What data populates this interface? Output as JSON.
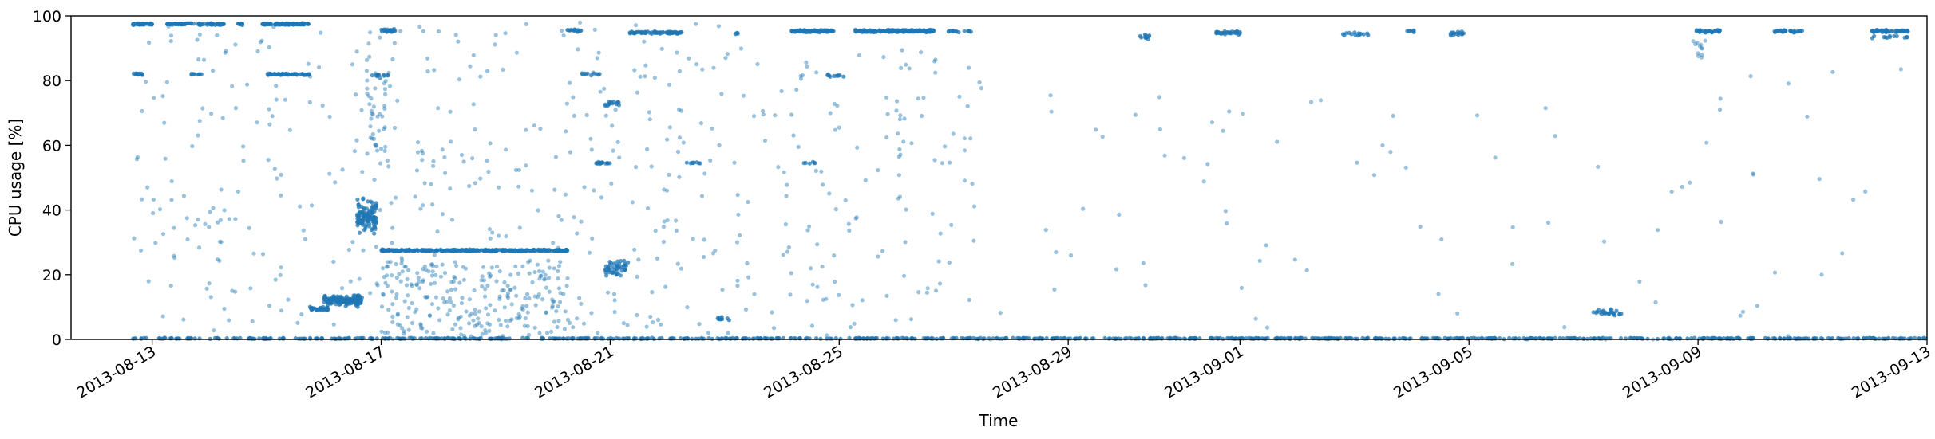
{
  "chart_data": {
    "type": "scatter",
    "title": "",
    "xlabel": "Time",
    "ylabel": "CPU usage [%]",
    "xlim": [
      "2013-08-11T14:00",
      "2013-09-13T00:00"
    ],
    "ylim": [
      0,
      100
    ],
    "yticks": [
      0,
      20,
      40,
      60,
      80,
      100
    ],
    "xticks": [
      "2013-08-13",
      "2013-08-17",
      "2013-08-21",
      "2013-08-25",
      "2013-08-29",
      "2013-09-01",
      "2013-09-05",
      "2013-09-09",
      "2013-09-13"
    ],
    "grid": false,
    "legend": "none",
    "marker_color": "#1f77b4",
    "clusters": [
      {
        "x_start": "2013-08-12T16:00",
        "x_end": "2013-08-13T00:00",
        "y": 97.5,
        "spread": 0.4,
        "n": 45,
        "density": "dense"
      },
      {
        "x_start": "2013-08-13T06:00",
        "x_end": "2013-08-14T06:00",
        "y": 97.5,
        "spread": 0.4,
        "n": 80,
        "density": "dense"
      },
      {
        "x_start": "2013-08-14T12:00",
        "x_end": "2013-08-14T14:00",
        "y": 97.5,
        "spread": 0.4,
        "n": 12,
        "density": "dense"
      },
      {
        "x_start": "2013-08-14T22:00",
        "x_end": "2013-08-15T18:00",
        "y": 97.5,
        "spread": 0.4,
        "n": 110,
        "density": "dense"
      },
      {
        "x_start": "2013-08-15T00:00",
        "x_end": "2013-08-15T18:00",
        "y": 82,
        "spread": 0.4,
        "n": 60,
        "density": "dense"
      },
      {
        "x_start": "2013-08-12T16:00",
        "x_end": "2013-08-12T20:00",
        "y": 82,
        "spread": 0.4,
        "n": 15,
        "density": "dense"
      },
      {
        "x_start": "2013-08-13T16:00",
        "x_end": "2013-08-13T22:00",
        "y": 82,
        "spread": 0.4,
        "n": 8,
        "density": "dense"
      },
      {
        "x_start": "2013-08-15T18:00",
        "x_end": "2013-08-16T02:00",
        "y": 9.5,
        "spread": 0.8,
        "n": 30,
        "density": "dense"
      },
      {
        "x_start": "2013-08-16T00:00",
        "x_end": "2013-08-16T16:00",
        "y": 12,
        "spread": 2.2,
        "n": 150,
        "density": "dense"
      },
      {
        "x_start": "2013-08-16T14:00",
        "x_end": "2013-08-16T22:00",
        "y": 38,
        "spread": 7,
        "n": 110,
        "density": "dense"
      },
      {
        "x_start": "2013-08-16T18:00",
        "x_end": "2013-08-17T02:00",
        "y": 70,
        "spread": 14,
        "n": 35,
        "density": "sparse"
      },
      {
        "x_start": "2013-08-17T00:00",
        "x_end": "2013-08-20T06:00",
        "y": 27.5,
        "spread": 0.4,
        "n": 330,
        "density": "dense"
      },
      {
        "x_start": "2013-08-17T00:00",
        "x_end": "2013-08-17T06:00",
        "y": 95.5,
        "spread": 0.6,
        "n": 20,
        "density": "dense"
      },
      {
        "x_start": "2013-08-16T20:00",
        "x_end": "2013-08-17T04:00",
        "y": 81.5,
        "spread": 0.6,
        "n": 10,
        "density": "dense"
      },
      {
        "x_start": "2013-08-20T06:00",
        "x_end": "2013-08-20T12:00",
        "y": 95.5,
        "spread": 0.6,
        "n": 14,
        "density": "dense"
      },
      {
        "x_start": "2013-08-20T12:00",
        "x_end": "2013-08-20T20:00",
        "y": 82,
        "spread": 0.5,
        "n": 10,
        "density": "dense"
      },
      {
        "x_start": "2013-08-20T18:00",
        "x_end": "2013-08-21T00:00",
        "y": 54.5,
        "spread": 0.5,
        "n": 14,
        "density": "dense"
      },
      {
        "x_start": "2013-08-20T20:00",
        "x_end": "2013-08-21T04:00",
        "y": 73,
        "spread": 1.5,
        "n": 15,
        "density": "dense"
      },
      {
        "x_start": "2013-08-20T22:00",
        "x_end": "2013-08-21T08:00",
        "y": 22,
        "spread": 3,
        "n": 45,
        "density": "dense"
      },
      {
        "x_start": "2013-08-21T08:00",
        "x_end": "2013-08-22T06:00",
        "y": 94.8,
        "spread": 0.5,
        "n": 70,
        "density": "dense"
      },
      {
        "x_start": "2013-08-22T08:00",
        "x_end": "2013-08-22T14:00",
        "y": 54.5,
        "spread": 0.4,
        "n": 8,
        "density": "dense"
      },
      {
        "x_start": "2013-08-22T20:00",
        "x_end": "2013-08-23T02:00",
        "y": 6.5,
        "spread": 1.2,
        "n": 10,
        "density": "dense"
      },
      {
        "x_start": "2013-08-23T04:00",
        "x_end": "2013-08-23T06:00",
        "y": 94.5,
        "spread": 0.5,
        "n": 4,
        "density": "dense"
      },
      {
        "x_start": "2013-08-24T04:00",
        "x_end": "2013-08-24T22:00",
        "y": 95.3,
        "spread": 0.5,
        "n": 90,
        "density": "dense"
      },
      {
        "x_start": "2013-08-25T06:00",
        "x_end": "2013-08-26T16:00",
        "y": 95.3,
        "spread": 0.5,
        "n": 190,
        "density": "dense"
      },
      {
        "x_start": "2013-08-24T18:00",
        "x_end": "2013-08-25T02:00",
        "y": 81.5,
        "spread": 0.5,
        "n": 10,
        "density": "dense"
      },
      {
        "x_start": "2013-08-24T08:00",
        "x_end": "2013-08-24T14:00",
        "y": 54.5,
        "spread": 0.5,
        "n": 6,
        "density": "dense"
      },
      {
        "x_start": "2013-08-26T20:00",
        "x_end": "2013-08-27T08:00",
        "y": 95.3,
        "spread": 0.5,
        "n": 14,
        "density": "dense"
      },
      {
        "x_start": "2013-08-30T06:00",
        "x_end": "2013-08-30T10:00",
        "y": 93.5,
        "spread": 1.5,
        "n": 10,
        "density": "dense"
      },
      {
        "x_start": "2013-08-31T14:00",
        "x_end": "2013-09-01T00:00",
        "y": 94.8,
        "spread": 0.8,
        "n": 30,
        "density": "dense"
      },
      {
        "x_start": "2013-09-02T18:00",
        "x_end": "2013-09-03T06:00",
        "y": 94.5,
        "spread": 1,
        "n": 14,
        "density": "dense"
      },
      {
        "x_start": "2013-09-03T22:00",
        "x_end": "2013-09-04T02:00",
        "y": 95.3,
        "spread": 0.6,
        "n": 6,
        "density": "dense"
      },
      {
        "x_start": "2013-09-04T16:00",
        "x_end": "2013-09-04T22:00",
        "y": 94.5,
        "spread": 1.2,
        "n": 14,
        "density": "dense"
      },
      {
        "x_start": "2013-09-07T04:00",
        "x_end": "2013-09-07T16:00",
        "y": 8.5,
        "spread": 1.5,
        "n": 25,
        "density": "dense"
      },
      {
        "x_start": "2013-09-08T22:00",
        "x_end": "2013-09-09T10:00",
        "y": 95.3,
        "spread": 0.6,
        "n": 30,
        "density": "dense"
      },
      {
        "x_start": "2013-09-08T22:00",
        "x_end": "2013-09-09T04:00",
        "y": 90,
        "spread": 3,
        "n": 12,
        "density": "sparse"
      },
      {
        "x_start": "2013-09-10T08:00",
        "x_end": "2013-09-10T20:00",
        "y": 95.3,
        "spread": 0.6,
        "n": 30,
        "density": "dense"
      },
      {
        "x_start": "2013-09-12T00:00",
        "x_end": "2013-09-12T16:00",
        "y": 95.3,
        "spread": 0.6,
        "n": 50,
        "density": "dense"
      },
      {
        "x_start": "2013-09-12T00:00",
        "x_end": "2013-09-12T16:00",
        "y": 93.5,
        "spread": 0.6,
        "n": 12,
        "density": "dense"
      },
      {
        "x_start": "2013-08-12T16:00",
        "x_end": "2013-09-14T00:00",
        "y": 0.3,
        "spread": 0.25,
        "n": 900,
        "density": "dense"
      },
      {
        "x_start": "2013-08-12T16:00",
        "x_end": "2013-08-23T00:00",
        "y": 50,
        "spread": 48,
        "n": 420,
        "density": "sparse"
      },
      {
        "x_start": "2013-08-23T00:00",
        "x_end": "2013-08-27T12:00",
        "y": 45,
        "spread": 45,
        "n": 150,
        "density": "sparse"
      },
      {
        "x_start": "2013-08-27T12:00",
        "x_end": "2013-09-13T00:00",
        "y": 40,
        "spread": 45,
        "n": 90,
        "density": "sparse"
      },
      {
        "x_start": "2013-08-17T00:00",
        "x_end": "2013-08-20T06:00",
        "y": 12,
        "spread": 12,
        "n": 220,
        "density": "sparse"
      }
    ]
  }
}
